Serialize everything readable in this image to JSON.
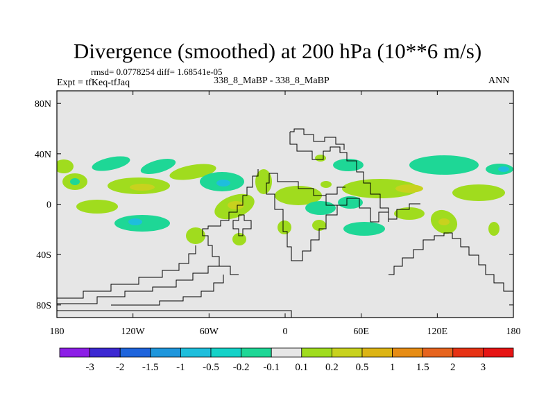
{
  "header": {
    "title": "Divergence (smoothed) at 200 hPa (10**6 m/s)",
    "stats": "rmsd= 0.0778254 diff= 1.68541e-05",
    "expt": "Expt = tfKeq-tfJaq",
    "case": "338_8_MaBP - 338_8_MaBP",
    "season": "ANN"
  },
  "map": {
    "background_color": "#e6e6e6",
    "lon_ticks": [
      "180",
      "120W",
      "60W",
      "0",
      "60E",
      "120E",
      "180"
    ],
    "lat_ticks": [
      "80N",
      "40N",
      "0",
      "40S",
      "80S"
    ],
    "lon_values": [
      -180,
      -120,
      -60,
      0,
      60,
      120,
      180
    ],
    "lat_values": [
      80,
      40,
      0,
      -40,
      -80
    ],
    "lon_range": [
      -180,
      180
    ],
    "lat_range": [
      -90,
      90
    ]
  },
  "colorbar": {
    "labels": [
      "-3",
      "-2",
      "-1.5",
      "-1",
      "-0.5",
      "-0.2",
      "-0.1",
      "0.1",
      "0.2",
      "0.5",
      "1",
      "1.5",
      "2",
      "3"
    ],
    "colors": [
      "#8c1ee6",
      "#3c28d2",
      "#1e64dc",
      "#1e96dc",
      "#1ebedc",
      "#14d2c8",
      "#1ed796",
      "#e6e6e6",
      "#a0dc1e",
      "#c8d21e",
      "#dcb414",
      "#e68c14",
      "#e6641e",
      "#e63214",
      "#e61414"
    ]
  }
}
